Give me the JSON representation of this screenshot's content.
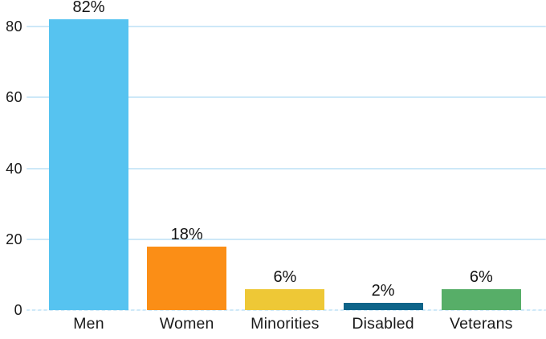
{
  "chart_data": {
    "type": "bar",
    "title": "",
    "xlabel": "",
    "ylabel": "",
    "categories": [
      "Men",
      "Women",
      "Minorities",
      "Disabled",
      "Veterans"
    ],
    "values": [
      82,
      18,
      6,
      2,
      6
    ],
    "value_labels": [
      "82%",
      "18%",
      "6%",
      "2%",
      "6%"
    ],
    "colors": [
      "#56C3F0",
      "#FB8E16",
      "#EEC836",
      "#0E6489",
      "#57AE68"
    ],
    "yticks": [
      0,
      20,
      40,
      60,
      80
    ],
    "ylim": [
      0,
      88
    ],
    "grid": "horizontal",
    "gridline_color": "#CDE8F8",
    "baseline_style": "dashed",
    "text_color": "#1A1A1A",
    "background": "#FFFFFF",
    "legend": "none"
  }
}
